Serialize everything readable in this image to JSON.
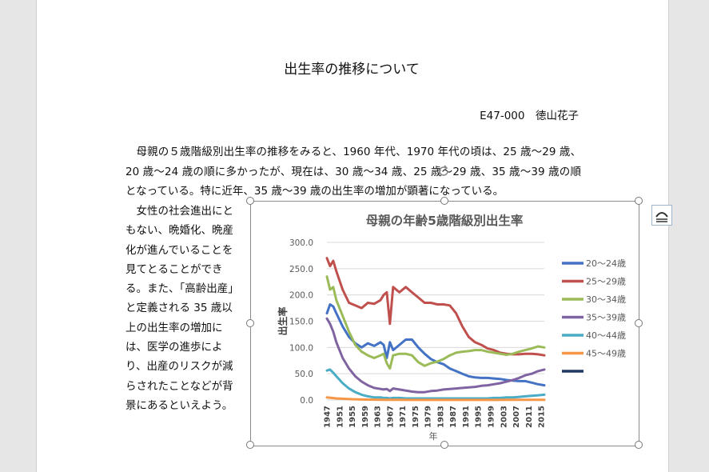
{
  "document": {
    "title": "出生率の推移について",
    "author": "E47-000　徳山花子",
    "paragraph1": "母親の５歳階級別出生率の推移をみると、1960 年代、1970 年代の頃は、25 歳～29 歳、20 歳～24 歳の順に多かったが、現在は、30 歳～34 歳、25 歳～29 歳、35 歳～39 歳の順となっている。特に近年、35 歳～39 歳の出生率の増加が顕著になっている。",
    "paragraph2": "女性の社会進出にともない、晩婚化、晩産化が進んでいることを見てとることができる。また、「高齢出産」と定義される 35 歳以上の出生率の増加には、医学の進歩により、出産のリスクが減らされたことなどが背景にあるといえよう。"
  },
  "chart_data": {
    "type": "line",
    "title": "母親の年齢5歳階級別出生率",
    "xlabel": "年",
    "ylabel": "出生率",
    "ylim": [
      0,
      300
    ],
    "yticks": [
      "0.0",
      "50.0",
      "100.0",
      "150.0",
      "200.0",
      "250.0",
      "300.0"
    ],
    "xticks": [
      "1947",
      "1951",
      "1955",
      "1959",
      "1963",
      "1967",
      "1971",
      "1975",
      "1979",
      "1983",
      "1987",
      "1991",
      "1995",
      "1999",
      "2003",
      "2007",
      "2011",
      "2015"
    ],
    "grid": true,
    "legend_position": "right",
    "series": [
      {
        "name": "20～24歳",
        "color": "#4472c4",
        "x": [
          1947,
          1948,
          1949,
          1950,
          1952,
          1954,
          1956,
          1958,
          1960,
          1962,
          1964,
          1965,
          1966,
          1967,
          1968,
          1970,
          1972,
          1974,
          1976,
          1978,
          1980,
          1982,
          1984,
          1986,
          1988,
          1990,
          1992,
          1994,
          1996,
          1998,
          2000,
          2002,
          2004,
          2006,
          2008,
          2010,
          2012,
          2014,
          2016
        ],
        "y": [
          165,
          182,
          178,
          165,
          140,
          120,
          108,
          100,
          108,
          103,
          110,
          105,
          80,
          110,
          95,
          105,
          115,
          115,
          100,
          88,
          78,
          72,
          68,
          60,
          55,
          50,
          45,
          43,
          42,
          42,
          41,
          40,
          38,
          37,
          36,
          36,
          33,
          30,
          28
        ]
      },
      {
        "name": "25～29歳",
        "color": "#c0504d",
        "x": [
          1947,
          1948,
          1949,
          1950,
          1952,
          1954,
          1956,
          1958,
          1960,
          1962,
          1964,
          1965,
          1966,
          1967,
          1968,
          1970,
          1972,
          1974,
          1976,
          1978,
          1980,
          1982,
          1984,
          1986,
          1988,
          1990,
          1992,
          1994,
          1996,
          1998,
          2000,
          2002,
          2004,
          2006,
          2008,
          2010,
          2012,
          2014,
          2016
        ],
        "y": [
          270,
          255,
          265,
          245,
          210,
          185,
          180,
          175,
          185,
          183,
          190,
          200,
          205,
          145,
          215,
          205,
          215,
          205,
          195,
          185,
          185,
          182,
          182,
          180,
          165,
          140,
          120,
          110,
          105,
          98,
          95,
          90,
          88,
          87,
          87,
          88,
          88,
          87,
          85
        ]
      },
      {
        "name": "30～34歳",
        "color": "#9bbb59",
        "x": [
          1947,
          1948,
          1949,
          1950,
          1952,
          1954,
          1956,
          1958,
          1960,
          1962,
          1964,
          1965,
          1966,
          1967,
          1968,
          1970,
          1972,
          1974,
          1976,
          1978,
          1980,
          1982,
          1984,
          1986,
          1988,
          1990,
          1992,
          1994,
          1996,
          1998,
          2000,
          2002,
          2004,
          2006,
          2008,
          2010,
          2012,
          2014,
          2016
        ],
        "y": [
          235,
          210,
          215,
          190,
          160,
          130,
          105,
          92,
          85,
          80,
          85,
          88,
          70,
          60,
          85,
          88,
          88,
          85,
          72,
          65,
          70,
          73,
          78,
          85,
          90,
          92,
          93,
          95,
          95,
          92,
          90,
          88,
          86,
          88,
          92,
          95,
          98,
          102,
          100
        ]
      },
      {
        "name": "35～39歳",
        "color": "#8064a2",
        "x": [
          1947,
          1948,
          1949,
          1950,
          1952,
          1954,
          1956,
          1958,
          1960,
          1962,
          1964,
          1965,
          1966,
          1967,
          1968,
          1970,
          1972,
          1974,
          1976,
          1978,
          1980,
          1982,
          1984,
          1986,
          1988,
          1990,
          1992,
          1994,
          1996,
          1998,
          2000,
          2002,
          2004,
          2006,
          2008,
          2010,
          2012,
          2014,
          2016
        ],
        "y": [
          155,
          145,
          130,
          110,
          80,
          60,
          45,
          35,
          28,
          23,
          21,
          20,
          21,
          17,
          22,
          20,
          18,
          16,
          15,
          15,
          17,
          18,
          20,
          21,
          22,
          23,
          24,
          25,
          27,
          28,
          30,
          32,
          35,
          38,
          42,
          47,
          50,
          55,
          58
        ]
      },
      {
        "name": "40～44歳",
        "color": "#4bacc6",
        "x": [
          1947,
          1948,
          1949,
          1950,
          1952,
          1954,
          1956,
          1958,
          1960,
          1962,
          1964,
          1965,
          1966,
          1967,
          1968,
          1970,
          1972,
          1974,
          1976,
          1978,
          1980,
          1982,
          1984,
          1986,
          1988,
          1990,
          1992,
          1994,
          1996,
          1998,
          2000,
          2002,
          2004,
          2006,
          2008,
          2010,
          2012,
          2014,
          2016
        ],
        "y": [
          56,
          58,
          52,
          45,
          32,
          22,
          15,
          10,
          7,
          5,
          5,
          4,
          4,
          3,
          4,
          4,
          3,
          3,
          3,
          3,
          3,
          3,
          3,
          3,
          3,
          3,
          3,
          3,
          3,
          3,
          4,
          4,
          5,
          5,
          6,
          7,
          8,
          9,
          10
        ]
      },
      {
        "name": "45～49歳",
        "color": "#f79646",
        "x": [
          1947,
          1950,
          1955,
          1960,
          1965,
          1970,
          1975,
          1980,
          1985,
          1990,
          1995,
          2000,
          2005,
          2010,
          2016
        ],
        "y": [
          5,
          3,
          1.5,
          0.8,
          0.5,
          0.3,
          0.2,
          0.2,
          0.2,
          0.2,
          0.2,
          0.2,
          0.3,
          0.4,
          0.5
        ]
      },
      {
        "name": "",
        "color": "#1f3864",
        "x": [],
        "y": []
      }
    ]
  }
}
